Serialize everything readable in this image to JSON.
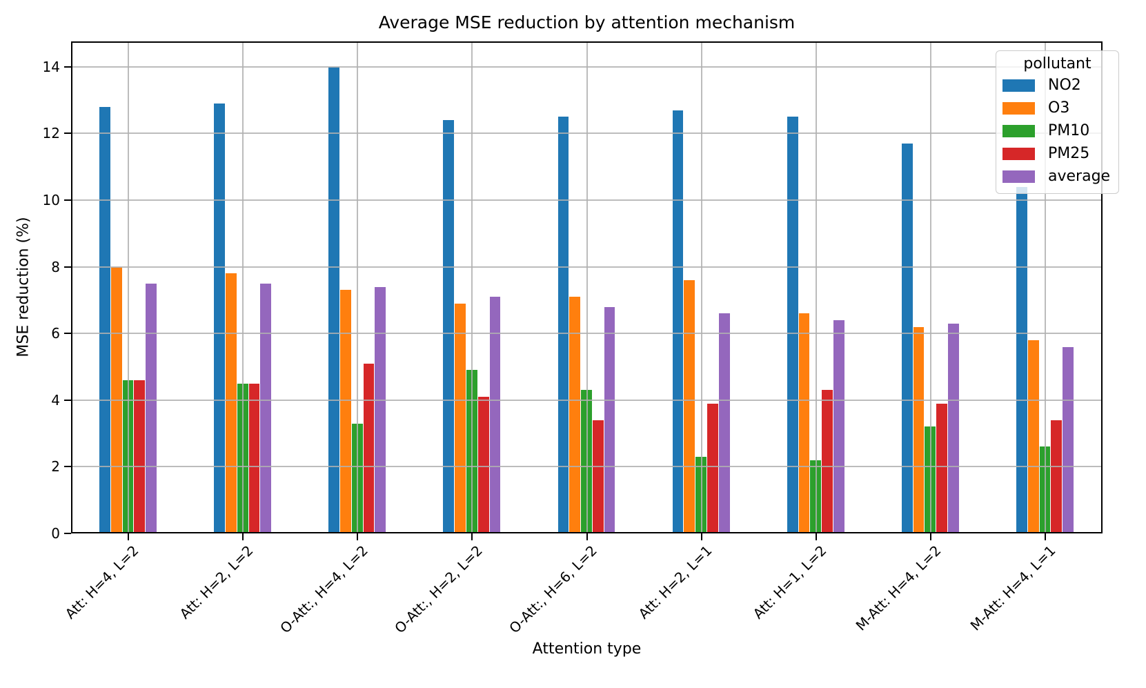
{
  "chart_data": {
    "type": "bar",
    "title": "Average MSE reduction by attention mechanism",
    "xlabel": "Attention type",
    "ylabel": "MSE reduction (%)",
    "legend_title": "pollutant",
    "legend_position": "upper right",
    "grid": true,
    "ylim": [
      0,
      14.76
    ],
    "yticks": [
      0,
      2,
      4,
      6,
      8,
      10,
      12,
      14
    ],
    "categories": [
      "Att: H=4, L=2",
      "Att: H=2, L=2",
      "O-Att:, H=4, L=2",
      "O-Att:, H=2, L=2",
      "O-Att:, H=6, L=2",
      "Att: H=2, L=1",
      "Att: H=1, L=2",
      "M-Att: H=4, L=2",
      "M-Att: H=4, L=1"
    ],
    "series": [
      {
        "name": "NO2",
        "color": "#1f77b4",
        "values": [
          12.8,
          12.9,
          14.0,
          12.4,
          12.5,
          12.7,
          12.5,
          11.7,
          10.4
        ]
      },
      {
        "name": "O3",
        "color": "#ff7f0e",
        "values": [
          8.0,
          7.8,
          7.3,
          6.9,
          7.1,
          7.6,
          6.6,
          6.2,
          5.8
        ]
      },
      {
        "name": "PM10",
        "color": "#2ca02c",
        "values": [
          4.6,
          4.5,
          3.3,
          4.9,
          4.3,
          2.3,
          2.2,
          3.2,
          2.6
        ]
      },
      {
        "name": "PM25",
        "color": "#d62728",
        "values": [
          4.6,
          4.5,
          5.1,
          4.1,
          3.4,
          3.9,
          4.3,
          3.9,
          3.4
        ]
      },
      {
        "name": "average",
        "color": "#9467bd",
        "values": [
          7.5,
          7.5,
          7.4,
          7.1,
          6.8,
          6.6,
          6.4,
          6.3,
          5.6
        ]
      }
    ]
  }
}
